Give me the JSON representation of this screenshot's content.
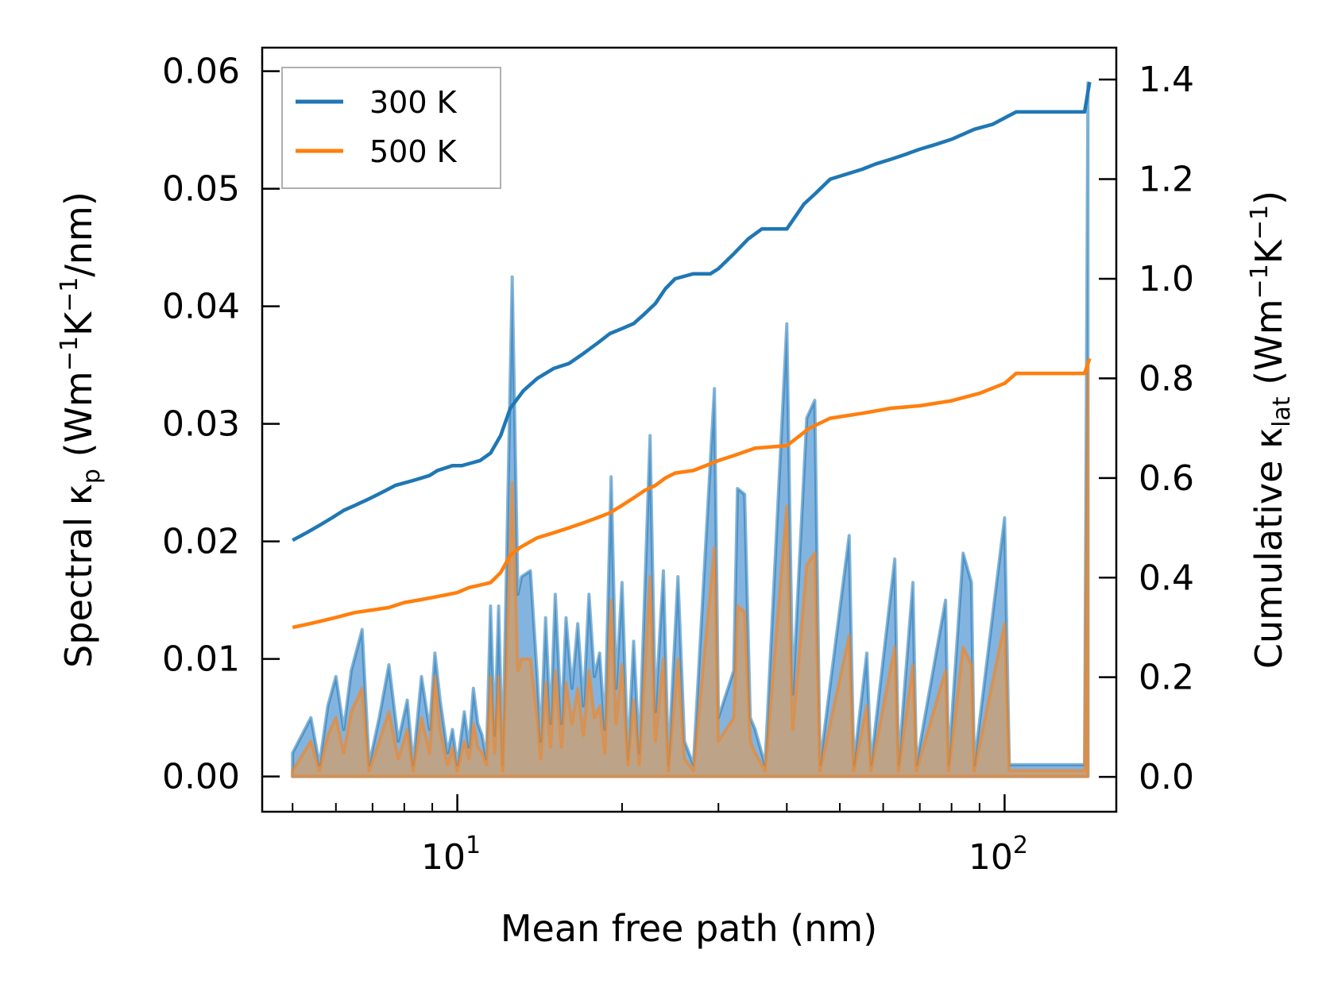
{
  "chart_data": {
    "type": "line",
    "title": "",
    "xlabel": "Mean free path (nm)",
    "ylabel_left": {
      "prefix": "Spectral κ",
      "sub": "p",
      "units": "(Wm",
      "sup1": "−1",
      "mid": "K",
      "sup2": "−1",
      "suffix": "/nm)"
    },
    "ylabel_right": {
      "prefix": "Cumulative κ",
      "sub": "lat",
      "units": "(Wm",
      "sup1": "−1",
      "mid": "K",
      "sup2": "−1",
      "suffix": ")"
    },
    "x_scale": "log",
    "xlim": [
      4.4,
      160
    ],
    "ylim_left": [
      -0.003,
      0.062
    ],
    "ylim_right": [
      -0.07,
      1.464
    ],
    "x_ticks": [
      {
        "base": "10",
        "exp": "1",
        "value": 10
      },
      {
        "base": "10",
        "exp": "2",
        "value": 100
      }
    ],
    "y_ticks_left": [
      "0.00",
      "0.01",
      "0.02",
      "0.03",
      "0.04",
      "0.05",
      "0.06"
    ],
    "y_ticks_right": [
      "0.0",
      "0.2",
      "0.4",
      "0.6",
      "0.8",
      "1.0",
      "1.2",
      "1.4"
    ],
    "legend": {
      "position": "top-left",
      "entries": [
        "300 K",
        "500 K"
      ]
    },
    "colors": {
      "300K": "#1f77b4",
      "500K": "#ff7f0e",
      "fill_300K": "#5a9bd4",
      "fill_500K": "#c8a078"
    },
    "series": [
      {
        "name": "300 K",
        "cumulative": [
          [
            5,
            0.475
          ],
          [
            5.3,
            0.49
          ],
          [
            5.6,
            0.505
          ],
          [
            5.9,
            0.52
          ],
          [
            6.2,
            0.535
          ],
          [
            6.5,
            0.545
          ],
          [
            6.8,
            0.555
          ],
          [
            7.1,
            0.565
          ],
          [
            7.4,
            0.575
          ],
          [
            7.7,
            0.585
          ],
          [
            8.0,
            0.59
          ],
          [
            8.3,
            0.595
          ],
          [
            8.6,
            0.6
          ],
          [
            8.9,
            0.605
          ],
          [
            9.2,
            0.615
          ],
          [
            9.5,
            0.62
          ],
          [
            9.8,
            0.625
          ],
          [
            10.2,
            0.625
          ],
          [
            10.6,
            0.63
          ],
          [
            11.0,
            0.635
          ],
          [
            11.5,
            0.65
          ],
          [
            12.0,
            0.685
          ],
          [
            12.5,
            0.74
          ],
          [
            13.2,
            0.775
          ],
          [
            14.0,
            0.8
          ],
          [
            15.0,
            0.82
          ],
          [
            16.0,
            0.83
          ],
          [
            17.0,
            0.85
          ],
          [
            18.0,
            0.87
          ],
          [
            19.0,
            0.89
          ],
          [
            20.0,
            0.9
          ],
          [
            21.0,
            0.91
          ],
          [
            22.0,
            0.93
          ],
          [
            23.0,
            0.95
          ],
          [
            24.0,
            0.98
          ],
          [
            25.0,
            1.0
          ],
          [
            27.0,
            1.01
          ],
          [
            29.0,
            1.01
          ],
          [
            30.0,
            1.02
          ],
          [
            32.0,
            1.05
          ],
          [
            34.0,
            1.08
          ],
          [
            36.0,
            1.1
          ],
          [
            40.0,
            1.1
          ],
          [
            43.0,
            1.15
          ],
          [
            45.0,
            1.17
          ],
          [
            48.0,
            1.2
          ],
          [
            55.0,
            1.22
          ],
          [
            58.0,
            1.23
          ],
          [
            62.0,
            1.24
          ],
          [
            66.0,
            1.25
          ],
          [
            70.0,
            1.26
          ],
          [
            75.0,
            1.27
          ],
          [
            80.0,
            1.28
          ],
          [
            88.0,
            1.3
          ],
          [
            95.0,
            1.31
          ],
          [
            105.0,
            1.335
          ],
          [
            140.0,
            1.335
          ],
          [
            143.0,
            1.395
          ]
        ],
        "spectral": [
          [
            5,
            0.002
          ],
          [
            5.4,
            0.005
          ],
          [
            5.6,
            0.001
          ],
          [
            5.8,
            0.006
          ],
          [
            6.0,
            0.0085
          ],
          [
            6.2,
            0.004
          ],
          [
            6.4,
            0.009
          ],
          [
            6.7,
            0.0125
          ],
          [
            6.9,
            0.001
          ],
          [
            7.2,
            0.005
          ],
          [
            7.5,
            0.0095
          ],
          [
            7.8,
            0.003
          ],
          [
            8.1,
            0.0065
          ],
          [
            8.3,
            0.001
          ],
          [
            8.6,
            0.0085
          ],
          [
            8.9,
            0.004
          ],
          [
            9.1,
            0.0105
          ],
          [
            9.3,
            0.0065
          ],
          [
            9.6,
            0.002
          ],
          [
            9.8,
            0.004
          ],
          [
            10.0,
            0.001
          ],
          [
            10.3,
            0.0055
          ],
          [
            10.5,
            0.0025
          ],
          [
            10.7,
            0.0075
          ],
          [
            10.9,
            0.0045
          ],
          [
            11.1,
            0.0035
          ],
          [
            11.3,
            0.0015
          ],
          [
            11.5,
            0.0145
          ],
          [
            11.7,
            0.0035
          ],
          [
            11.9,
            0.0145
          ],
          [
            12.1,
            0.001
          ],
          [
            12.6,
            0.0425
          ],
          [
            12.9,
            0.0155
          ],
          [
            13.1,
            0.017
          ],
          [
            13.6,
            0.0175
          ],
          [
            14.0,
            0.0085
          ],
          [
            14.2,
            0.003
          ],
          [
            14.5,
            0.0135
          ],
          [
            14.8,
            0.0045
          ],
          [
            15.1,
            0.0155
          ],
          [
            15.5,
            0.0045
          ],
          [
            15.8,
            0.0135
          ],
          [
            16.2,
            0.0075
          ],
          [
            16.6,
            0.013
          ],
          [
            17.0,
            0.006
          ],
          [
            17.4,
            0.0155
          ],
          [
            17.8,
            0.0085
          ],
          [
            18.2,
            0.0105
          ],
          [
            18.6,
            0.004
          ],
          [
            19.1,
            0.0255
          ],
          [
            19.5,
            0.0075
          ],
          [
            20.0,
            0.0165
          ],
          [
            20.5,
            0.0015
          ],
          [
            21.0,
            0.0115
          ],
          [
            21.5,
            0.002
          ],
          [
            22.5,
            0.029
          ],
          [
            23.0,
            0.0055
          ],
          [
            23.8,
            0.0175
          ],
          [
            24.3,
            0.001
          ],
          [
            25.3,
            0.017
          ],
          [
            26.0,
            0.003
          ],
          [
            27.0,
            0.001
          ],
          [
            29.5,
            0.033
          ],
          [
            30.0,
            0.005
          ],
          [
            32.0,
            0.009
          ],
          [
            32.5,
            0.0245
          ],
          [
            33.5,
            0.024
          ],
          [
            34.3,
            0.005
          ],
          [
            35.0,
            0.004
          ],
          [
            36.5,
            0.001
          ],
          [
            40.0,
            0.0385
          ],
          [
            41.0,
            0.007
          ],
          [
            43.5,
            0.0305
          ],
          [
            45.0,
            0.032
          ],
          [
            46.0,
            0.001
          ],
          [
            52.0,
            0.0205
          ],
          [
            53.0,
            0.001
          ],
          [
            56.0,
            0.0105
          ],
          [
            57.0,
            0.001
          ],
          [
            63.0,
            0.0185
          ],
          [
            64.0,
            0.001
          ],
          [
            68.0,
            0.0165
          ],
          [
            69.0,
            0.001
          ],
          [
            78.0,
            0.015
          ],
          [
            79.0,
            0.001
          ],
          [
            84.0,
            0.019
          ],
          [
            87.0,
            0.0165
          ],
          [
            88.0,
            0.001
          ],
          [
            100.0,
            0.022
          ],
          [
            102.0,
            0.001
          ],
          [
            140.0,
            0.001
          ],
          [
            142.0,
            0.059
          ]
        ]
      },
      {
        "name": "500 K",
        "cumulative": [
          [
            5,
            0.3
          ],
          [
            5.5,
            0.31
          ],
          [
            6.0,
            0.32
          ],
          [
            6.5,
            0.33
          ],
          [
            7.0,
            0.335
          ],
          [
            7.5,
            0.34
          ],
          [
            8.0,
            0.35
          ],
          [
            8.5,
            0.355
          ],
          [
            9.0,
            0.36
          ],
          [
            9.5,
            0.365
          ],
          [
            10.0,
            0.37
          ],
          [
            10.5,
            0.38
          ],
          [
            11.0,
            0.385
          ],
          [
            11.5,
            0.39
          ],
          [
            12.0,
            0.41
          ],
          [
            12.5,
            0.445
          ],
          [
            13.0,
            0.46
          ],
          [
            14.0,
            0.48
          ],
          [
            15.0,
            0.49
          ],
          [
            16.0,
            0.5
          ],
          [
            17.0,
            0.51
          ],
          [
            18.0,
            0.52
          ],
          [
            19.0,
            0.53
          ],
          [
            20.0,
            0.545
          ],
          [
            21.0,
            0.56
          ],
          [
            22.0,
            0.575
          ],
          [
            23.0,
            0.585
          ],
          [
            24.0,
            0.6
          ],
          [
            25.0,
            0.61
          ],
          [
            27.0,
            0.615
          ],
          [
            30.0,
            0.635
          ],
          [
            32.0,
            0.645
          ],
          [
            35.0,
            0.66
          ],
          [
            40.0,
            0.665
          ],
          [
            44.0,
            0.7
          ],
          [
            48.0,
            0.72
          ],
          [
            55.0,
            0.73
          ],
          [
            62.0,
            0.74
          ],
          [
            70.0,
            0.745
          ],
          [
            80.0,
            0.755
          ],
          [
            90.0,
            0.77
          ],
          [
            100.0,
            0.79
          ],
          [
            105.0,
            0.81
          ],
          [
            140.0,
            0.81
          ],
          [
            143.0,
            0.84
          ]
        ],
        "spectral": [
          [
            5,
            0.0005
          ],
          [
            5.4,
            0.003
          ],
          [
            5.6,
            0.0005
          ],
          [
            5.8,
            0.0035
          ],
          [
            6.0,
            0.005
          ],
          [
            6.2,
            0.002
          ],
          [
            6.4,
            0.0055
          ],
          [
            6.7,
            0.0075
          ],
          [
            6.9,
            0.0005
          ],
          [
            7.2,
            0.003
          ],
          [
            7.5,
            0.0055
          ],
          [
            7.8,
            0.0015
          ],
          [
            8.1,
            0.004
          ],
          [
            8.3,
            0.0005
          ],
          [
            8.6,
            0.005
          ],
          [
            8.9,
            0.002
          ],
          [
            9.1,
            0.0085
          ],
          [
            9.3,
            0.004
          ],
          [
            9.6,
            0.001
          ],
          [
            9.8,
            0.0025
          ],
          [
            10.0,
            0.0005
          ],
          [
            10.3,
            0.003
          ],
          [
            10.5,
            0.0015
          ],
          [
            10.7,
            0.0045
          ],
          [
            10.9,
            0.0025
          ],
          [
            11.1,
            0.002
          ],
          [
            11.3,
            0.001
          ],
          [
            11.5,
            0.0085
          ],
          [
            11.7,
            0.002
          ],
          [
            11.9,
            0.0085
          ],
          [
            12.1,
            0.0005
          ],
          [
            12.6,
            0.025
          ],
          [
            12.9,
            0.009
          ],
          [
            13.1,
            0.01
          ],
          [
            13.6,
            0.01
          ],
          [
            14.0,
            0.005
          ],
          [
            14.2,
            0.0015
          ],
          [
            14.5,
            0.008
          ],
          [
            14.8,
            0.0025
          ],
          [
            15.1,
            0.009
          ],
          [
            15.5,
            0.0025
          ],
          [
            15.8,
            0.008
          ],
          [
            16.2,
            0.0045
          ],
          [
            16.6,
            0.0075
          ],
          [
            17.0,
            0.0035
          ],
          [
            17.4,
            0.009
          ],
          [
            17.8,
            0.005
          ],
          [
            18.2,
            0.006
          ],
          [
            18.6,
            0.002
          ],
          [
            19.1,
            0.015
          ],
          [
            19.5,
            0.0045
          ],
          [
            20.0,
            0.0095
          ],
          [
            20.5,
            0.001
          ],
          [
            21.0,
            0.0065
          ],
          [
            21.5,
            0.001
          ],
          [
            22.5,
            0.017
          ],
          [
            23.0,
            0.003
          ],
          [
            23.8,
            0.01
          ],
          [
            24.3,
            0.0005
          ],
          [
            25.3,
            0.01
          ],
          [
            26.0,
            0.0015
          ],
          [
            27.0,
            0.0005
          ],
          [
            29.5,
            0.0195
          ],
          [
            30.0,
            0.003
          ],
          [
            32.0,
            0.005
          ],
          [
            32.5,
            0.0145
          ],
          [
            33.5,
            0.014
          ],
          [
            34.3,
            0.003
          ],
          [
            35.0,
            0.002
          ],
          [
            36.5,
            0.0005
          ],
          [
            40.0,
            0.023
          ],
          [
            41.0,
            0.004
          ],
          [
            43.5,
            0.018
          ],
          [
            45.0,
            0.019
          ],
          [
            46.0,
            0.0005
          ],
          [
            52.0,
            0.012
          ],
          [
            53.0,
            0.0005
          ],
          [
            56.0,
            0.006
          ],
          [
            57.0,
            0.0005
          ],
          [
            63.0,
            0.011
          ],
          [
            64.0,
            0.0005
          ],
          [
            68.0,
            0.0095
          ],
          [
            69.0,
            0.0005
          ],
          [
            78.0,
            0.009
          ],
          [
            79.0,
            0.0005
          ],
          [
            84.0,
            0.011
          ],
          [
            87.0,
            0.0095
          ],
          [
            88.0,
            0.0005
          ],
          [
            100.0,
            0.013
          ],
          [
            102.0,
            0.0005
          ],
          [
            140.0,
            0.0005
          ],
          [
            142.0,
            0.035
          ]
        ]
      }
    ]
  }
}
